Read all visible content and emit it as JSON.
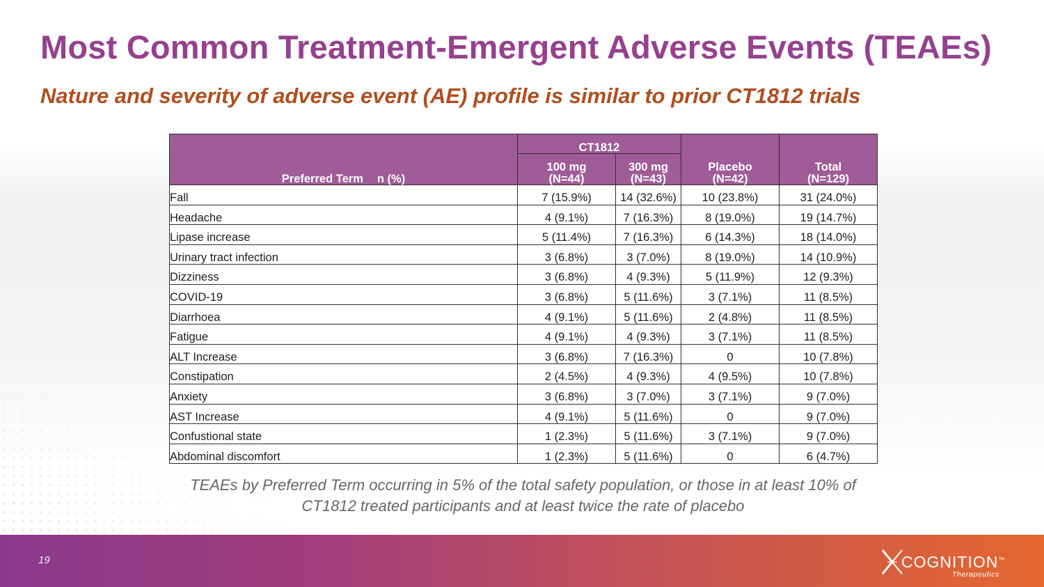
{
  "slide": {
    "title": "Most Common Treatment-Emergent Adverse Events (TEAEs)",
    "subtitle": "Nature and severity of adverse event (AE) profile is similar to prior CT1812 trials",
    "page_number": "19",
    "footnote": "TEAEs by Preferred Term occurring in 5% of the total safety population, or those in at least 10% of CT1812 treated participants and at least twice the rate of placebo"
  },
  "table": {
    "header": {
      "preferred_term": "Preferred Term",
      "n_pct": "n (%)",
      "group": "CT1812",
      "col_100_line1": "100 mg",
      "col_100_line2": "(N=44)",
      "col_300_line1": "300 mg",
      "col_300_line2": "(N=43)",
      "placebo_line1": "Placebo",
      "placebo_line2": "(N=42)",
      "total_line1": "Total",
      "total_line2": "(N=129)"
    },
    "rows": [
      {
        "term": "Fall",
        "mg100": "7 (15.9%)",
        "mg300": "14 (32.6%)",
        "placebo": "10 (23.8%)",
        "total": "31 (24.0%)"
      },
      {
        "term": "Headache",
        "mg100": "4 (9.1%)",
        "mg300": "7 (16.3%)",
        "placebo": "8 (19.0%)",
        "total": "19 (14.7%)"
      },
      {
        "term": "Lipase increase",
        "mg100": "5 (11.4%)",
        "mg300": "7 (16.3%)",
        "placebo": "6 (14.3%)",
        "total": "18 (14.0%)"
      },
      {
        "term": "Urinary tract infection",
        "mg100": "3 (6.8%)",
        "mg300": "3 (7.0%)",
        "placebo": "8 (19.0%)",
        "total": "14 (10.9%)"
      },
      {
        "term": "Dizziness",
        "mg100": "3 (6.8%)",
        "mg300": "4 (9.3%)",
        "placebo": "5 (11.9%)",
        "total": "12 (9.3%)"
      },
      {
        "term": "COVID-19",
        "mg100": "3 (6.8%)",
        "mg300": "5 (11.6%)",
        "placebo": "3 (7.1%)",
        "total": "11 (8.5%)"
      },
      {
        "term": "Diarrhoea",
        "mg100": "4 (9.1%)",
        "mg300": "5 (11.6%)",
        "placebo": "2 (4.8%)",
        "total": "11 (8.5%)"
      },
      {
        "term": "Fatigue",
        "mg100": "4 (9.1%)",
        "mg300": "4 (9.3%)",
        "placebo": "3 (7.1%)",
        "total": "11 (8.5%)"
      },
      {
        "term": "ALT Increase",
        "mg100": "3 (6.8%)",
        "mg300": "7 (16.3%)",
        "placebo": "0",
        "total": "10 (7.8%)"
      },
      {
        "term": "Constipation",
        "mg100": "2 (4.5%)",
        "mg300": "4 (9.3%)",
        "placebo": "4 (9.5%)",
        "total": "10 (7.8%)"
      },
      {
        "term": "Anxiety",
        "mg100": "3 (6.8%)",
        "mg300": "3 (7.0%)",
        "placebo": "3 (7.1%)",
        "total": "9 (7.0%)"
      },
      {
        "term": "AST Increase",
        "mg100": "4 (9.1%)",
        "mg300": "5 (11.6%)",
        "placebo": "0",
        "total": "9 (7.0%)"
      },
      {
        "term": "Confustional state",
        "mg100": "1 (2.3%)",
        "mg300": "5 (11.6%)",
        "placebo": "3 (7.1%)",
        "total": "9 (7.0%)"
      },
      {
        "term": "Abdominal discomfort",
        "mg100": "1 (2.3%)",
        "mg300": "5 (11.6%)",
        "placebo": "0",
        "total": "6 (4.7%)"
      }
    ]
  },
  "logo": {
    "name": "COGNITION",
    "tm": "™",
    "tagline": "Therapeutics",
    "icon": "x-mark-icon"
  },
  "colors": {
    "title": "#96408f",
    "subtitle": "#b04e1e",
    "table_header": "#9f5c98",
    "footer_start": "#8a3a8c",
    "footer_end": "#e4672f"
  }
}
